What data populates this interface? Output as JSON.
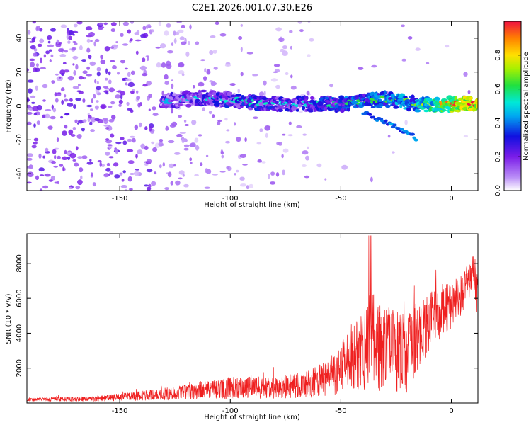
{
  "title": "C2E1.2026.001.07.30.E26",
  "colors": {
    "noise": "#8a3cf0",
    "snr_line": "#ef2020",
    "signal_low": "#2020d8",
    "signal_high": "#e8202a"
  },
  "chart_data": [
    {
      "type": "heatmap",
      "name": "spectrogram",
      "xlabel": "Height of straight line (km)",
      "ylabel": "Frequency (Hz)",
      "xlim": [
        -192,
        12
      ],
      "ylim": [
        -50,
        50
      ],
      "xticks": [
        -150,
        -100,
        -50,
        0
      ],
      "yticks": [
        -40,
        -20,
        0,
        20,
        40
      ],
      "colorbar": {
        "label": "Normalized spectral amplitude",
        "range": [
          0,
          1
        ],
        "ticks": [
          "0.0",
          "0.2",
          "0.4",
          "0.6",
          "0.8"
        ],
        "tick_values": [
          0,
          0.2,
          0.4,
          0.6,
          0.8
        ]
      },
      "signal_track": {
        "description_points": [
          {
            "x": -130,
            "freq": 3,
            "amp": 0.35
          },
          {
            "x": -110,
            "freq": 5,
            "amp": 0.4
          },
          {
            "x": -90,
            "freq": 2,
            "amp": 0.45
          },
          {
            "x": -70,
            "freq": 1,
            "amp": 0.4
          },
          {
            "x": -50,
            "freq": 1,
            "amp": 0.5
          },
          {
            "x": -30,
            "freq": 4,
            "amp": 0.55
          },
          {
            "x": -15,
            "freq": 1,
            "amp": 0.6
          },
          {
            "x": 0,
            "freq": 1,
            "amp": 0.85
          },
          {
            "x": 10,
            "freq": 1,
            "amp": 0.95
          }
        ],
        "branch": [
          {
            "x": -40,
            "freq": -4
          },
          {
            "x": -25,
            "freq": -12
          },
          {
            "x": -16,
            "freq": -19
          }
        ]
      }
    },
    {
      "type": "line",
      "name": "snr",
      "xlabel": "Height of straight line (km)",
      "ylabel": "SNR (10 * v/v)",
      "xlim": [
        -192,
        12
      ],
      "ylim": [
        0,
        9700
      ],
      "xticks": [
        -150,
        -100,
        -50,
        0
      ],
      "yticks": [
        2000,
        4000,
        6000,
        8000
      ],
      "envelope": {
        "x": [
          -190,
          -160,
          -140,
          -120,
          -100,
          -80,
          -65,
          -55,
          -45,
          -38,
          -35,
          -30,
          -25,
          -20,
          -15,
          -10,
          -5,
          0,
          5,
          8,
          10,
          12
        ],
        "mean": [
          200,
          250,
          420,
          620,
          850,
          900,
          1050,
          1500,
          2500,
          3400,
          3600,
          3200,
          3000,
          2800,
          3800,
          4600,
          5200,
          5600,
          6200,
          7000,
          7600,
          6000
        ],
        "spread": [
          100,
          150,
          280,
          420,
          650,
          650,
          800,
          1100,
          1800,
          2600,
          3200,
          2400,
          2400,
          2200,
          1900,
          1700,
          1500,
          1300,
          1200,
          1100,
          1100,
          1500
        ]
      }
    }
  ]
}
